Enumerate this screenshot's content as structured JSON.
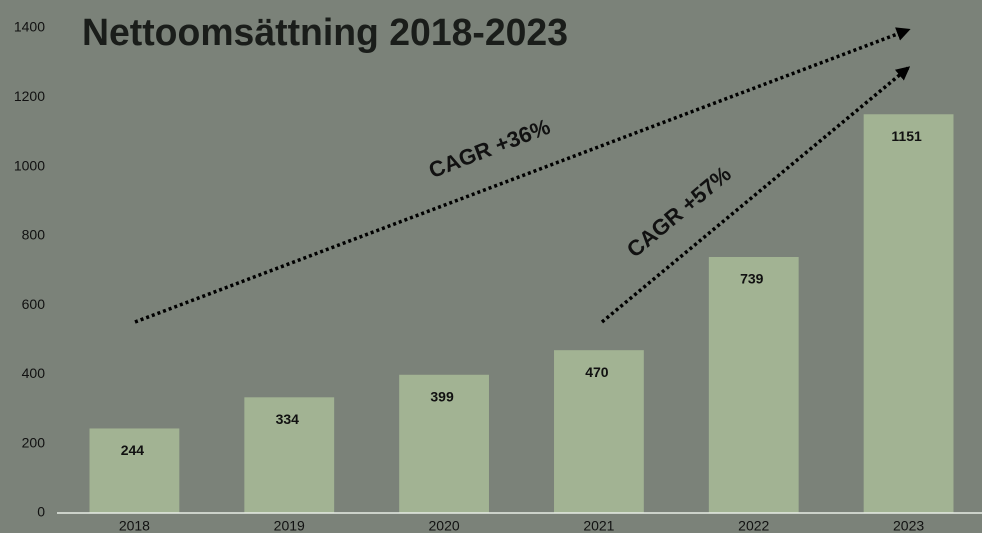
{
  "chart_data": {
    "type": "bar",
    "title": "Nettoomsättning 2018-2023",
    "categories": [
      "2018",
      "2019",
      "2020",
      "2021",
      "2022",
      "2023"
    ],
    "values": [
      244,
      334,
      399,
      470,
      739,
      1151
    ],
    "color": "#a2b393",
    "ylim": [
      0,
      1400
    ],
    "yticks": [
      0,
      200,
      400,
      600,
      800,
      1000,
      1200,
      1400
    ],
    "annotations": [
      "CAGR +36%",
      "CAGR +57%"
    ]
  }
}
